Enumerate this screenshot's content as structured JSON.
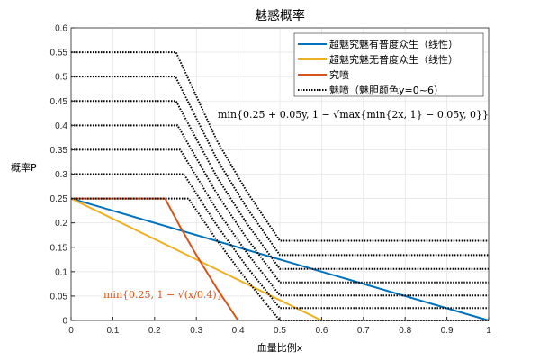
{
  "chart_data": {
    "type": "line",
    "title": "魅惑概率",
    "xlabel": "血量比例x",
    "ylabel": "概率P",
    "xlim": [
      0,
      1
    ],
    "ylim": [
      0,
      0.6
    ],
    "grid": true,
    "legend_position": "top-right",
    "xticks": [
      "0",
      "0.1",
      "0.2",
      "0.3",
      "0.4",
      "0.5",
      "0.6",
      "0.7",
      "0.8",
      "0.9",
      "1"
    ],
    "yticks": [
      "0",
      "0.05",
      "0.1",
      "0.15",
      "0.2",
      "0.25",
      "0.3",
      "0.35",
      "0.4",
      "0.45",
      "0.5",
      "0.55",
      "0.6"
    ],
    "series": [
      {
        "name": "超魅究魅有普度众生（线性）",
        "color": "#0072BD",
        "style": "solid",
        "points": [
          [
            0,
            0.25
          ],
          [
            1,
            0
          ]
        ]
      },
      {
        "name": "超魅究魅无普度众生（线性）",
        "color": "#EDB120",
        "style": "solid",
        "points": [
          [
            0,
            0.25
          ],
          [
            0.6,
            0
          ]
        ]
      },
      {
        "name": "究喷",
        "color": "#D95319",
        "style": "solid",
        "points": [
          [
            0,
            0.25
          ],
          [
            0.225,
            0.25
          ],
          [
            0.26,
            0.1938
          ],
          [
            0.3,
            0.134
          ],
          [
            0.35,
            0.0646
          ],
          [
            0.4,
            0
          ]
        ]
      },
      {
        "name": "魅喷（魅胆颜色y=0~6）",
        "color": "#000000",
        "style": "dotted",
        "curves": [
          {
            "y": 0,
            "points": [
              [
                0,
                0.25
              ],
              [
                0.28125,
                0.25
              ],
              [
                0.35,
                0.1633
              ],
              [
                0.42,
                0.0835
              ],
              [
                0.5,
                0
              ],
              [
                1,
                0
              ]
            ]
          },
          {
            "y": 1,
            "points": [
              [
                0,
                0.3
              ],
              [
                0.27,
                0.3
              ],
              [
                0.35,
                0.1938
              ],
              [
                0.42,
                0.1112
              ],
              [
                0.5,
                0.0253
              ],
              [
                1,
                0.0253
              ]
            ]
          },
          {
            "y": 2,
            "points": [
              [
                0,
                0.35
              ],
              [
                0.26125,
                0.35
              ],
              [
                0.35,
                0.2254
              ],
              [
                0.42,
                0.1398
              ],
              [
                0.5,
                0.0513
              ],
              [
                1,
                0.0513
              ]
            ]
          },
          {
            "y": 3,
            "points": [
              [
                0,
                0.4
              ],
              [
                0.255,
                0.4
              ],
              [
                0.35,
                0.2584
              ],
              [
                0.42,
                0.1693
              ],
              [
                0.5,
                0.078
              ],
              [
                1,
                0.078
              ]
            ]
          },
          {
            "y": 4,
            "points": [
              [
                0,
                0.45
              ],
              [
                0.25125,
                0.45
              ],
              [
                0.35,
                0.2929
              ],
              [
                0.42,
                0.2
              ],
              [
                0.5,
                0.1056
              ],
              [
                1,
                0.1056
              ]
            ]
          },
          {
            "y": 5,
            "points": [
              [
                0,
                0.5
              ],
              [
                0.25,
                0.5
              ],
              [
                0.35,
                0.3292
              ],
              [
                0.42,
                0.2319
              ],
              [
                0.5,
                0.134
              ],
              [
                1,
                0.134
              ]
            ]
          },
          {
            "y": 6,
            "points": [
              [
                0,
                0.55
              ],
              [
                0.25125,
                0.55
              ],
              [
                0.35,
                0.3675
              ],
              [
                0.42,
                0.2652
              ],
              [
                0.5,
                0.1633
              ],
              [
                1,
                0.1633
              ]
            ]
          }
        ]
      }
    ],
    "annotations": [
      {
        "text": "min{0.25 + 0.05y, 1 − √max{min{2x, 1} − 0.05y, 0}}",
        "color": "#000000"
      },
      {
        "text": "min{0.25, 1 − √(x/0.4)}",
        "color": "#D95319"
      }
    ]
  }
}
